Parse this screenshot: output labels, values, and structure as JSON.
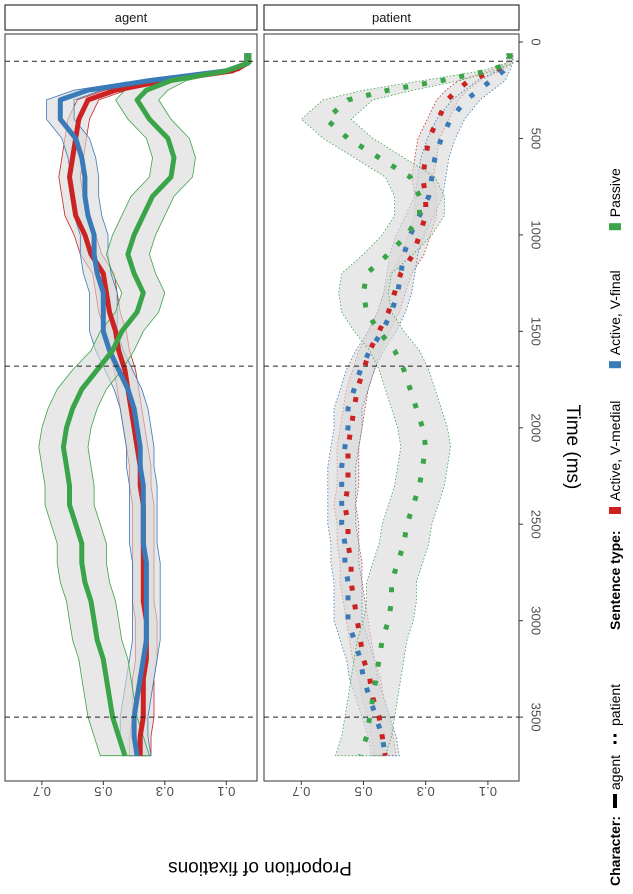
{
  "chart_data": {
    "type": "line",
    "title": "",
    "xlabel": "Time (ms)",
    "ylabel": "Proportion of fixations",
    "xlim": [
      0,
      3800
    ],
    "ylim": [
      0,
      0.82
    ],
    "x_ticks": [
      0,
      500,
      1000,
      1500,
      2000,
      2500,
      3000,
      3500
    ],
    "y_ticks": [
      0.1,
      0.3,
      0.5,
      0.7
    ],
    "y_tick_labels": [
      "0.1",
      "0.3",
      "0.5",
      "0.7"
    ],
    "vlines": [
      100,
      1680,
      3500
    ],
    "rotation": "rotated 90 degrees clockwise",
    "grid": false,
    "legend": {
      "placement": "bottom",
      "character_title": "Character:",
      "character_items": [
        "agent",
        "patient"
      ],
      "sentence_title": "Sentence type:",
      "sentence_items": [
        {
          "label": "Active, V-medial",
          "color": "#cc2222"
        },
        {
          "label": "Active, V-final",
          "color": "#3a7ab8"
        },
        {
          "label": "Passive",
          "color": "#3aa548"
        }
      ]
    },
    "panels": [
      {
        "label": "agent",
        "line_style": "solid",
        "series": [
          {
            "name": "Active, V-medial",
            "color": "#cc2222",
            "x": [
              60,
              110,
              150,
              200,
              250,
              300,
              400,
              500,
              600,
              700,
              800,
              900,
              1000,
              1100,
              1200,
              1300,
              1400,
              1500,
              1600,
              1700,
              1800,
              1900,
              2000,
              2100,
              2200,
              2300,
              2400,
              2500,
              2600,
              2700,
              2800,
              2900,
              3000,
              3100,
              3200,
              3300,
              3400,
              3500,
              3600,
              3700
            ],
            "y": [
              0.03,
              0.03,
              0.08,
              0.3,
              0.46,
              0.55,
              0.58,
              0.59,
              0.6,
              0.61,
              0.6,
              0.59,
              0.56,
              0.54,
              0.5,
              0.49,
              0.48,
              0.46,
              0.45,
              0.43,
              0.42,
              0.41,
              0.4,
              0.39,
              0.38,
              0.38,
              0.37,
              0.37,
              0.37,
              0.37,
              0.37,
              0.37,
              0.36,
              0.36,
              0.36,
              0.37,
              0.37,
              0.37,
              0.38,
              0.38
            ],
            "ci": [
              0.01,
              0.01,
              0.02,
              0.03,
              0.035,
              0.035,
              0.035,
              0.035,
              0.035,
              0.035,
              0.035,
              0.035,
              0.035,
              0.035,
              0.035,
              0.035,
              0.035,
              0.035,
              0.035,
              0.035,
              0.035,
              0.035,
              0.035,
              0.035,
              0.035,
              0.035,
              0.035,
              0.035,
              0.035,
              0.035,
              0.035,
              0.035,
              0.035,
              0.035,
              0.035,
              0.035,
              0.035,
              0.035,
              0.035,
              0.035
            ]
          },
          {
            "name": "Active, V-final",
            "color": "#3a7ab8",
            "x": [
              60,
              110,
              150,
              200,
              250,
              300,
              400,
              500,
              600,
              700,
              800,
              900,
              1000,
              1100,
              1200,
              1300,
              1400,
              1500,
              1600,
              1700,
              1800,
              1900,
              2000,
              2100,
              2200,
              2300,
              2400,
              2500,
              2600,
              2700,
              2800,
              2900,
              3000,
              3100,
              3200,
              3300,
              3400,
              3500,
              3600,
              3700
            ],
            "y": [
              0.03,
              0.03,
              0.1,
              0.35,
              0.55,
              0.64,
              0.64,
              0.59,
              0.57,
              0.56,
              0.56,
              0.55,
              0.53,
              0.53,
              0.52,
              0.5,
              0.5,
              0.5,
              0.48,
              0.45,
              0.42,
              0.4,
              0.39,
              0.38,
              0.38,
              0.37,
              0.37,
              0.37,
              0.37,
              0.36,
              0.36,
              0.36,
              0.36,
              0.36,
              0.37,
              0.38,
              0.39,
              0.4,
              0.4,
              0.39
            ],
            "ci": [
              0.01,
              0.01,
              0.02,
              0.04,
              0.045,
              0.045,
              0.045,
              0.045,
              0.045,
              0.045,
              0.045,
              0.045,
              0.045,
              0.045,
              0.045,
              0.045,
              0.045,
              0.045,
              0.045,
              0.045,
              0.045,
              0.045,
              0.045,
              0.045,
              0.045,
              0.045,
              0.045,
              0.045,
              0.045,
              0.045,
              0.045,
              0.045,
              0.045,
              0.045,
              0.045,
              0.045,
              0.045,
              0.045,
              0.045,
              0.045
            ]
          },
          {
            "name": "Passive",
            "color": "#3aa548",
            "x": [
              60,
              110,
              150,
              200,
              250,
              300,
              400,
              500,
              600,
              700,
              800,
              900,
              1000,
              1100,
              1200,
              1300,
              1400,
              1500,
              1600,
              1700,
              1800,
              1900,
              2000,
              2100,
              2200,
              2300,
              2400,
              2500,
              2600,
              2700,
              2800,
              2900,
              3000,
              3100,
              3200,
              3300,
              3400,
              3500,
              3600,
              3700
            ],
            "y": [
              0.03,
              0.03,
              0.1,
              0.28,
              0.36,
              0.39,
              0.35,
              0.29,
              0.27,
              0.28,
              0.34,
              0.37,
              0.4,
              0.42,
              0.4,
              0.37,
              0.39,
              0.44,
              0.47,
              0.52,
              0.57,
              0.6,
              0.62,
              0.63,
              0.62,
              0.61,
              0.61,
              0.59,
              0.57,
              0.57,
              0.56,
              0.54,
              0.53,
              0.52,
              0.5,
              0.49,
              0.48,
              0.47,
              0.45,
              0.43
            ],
            "ci": [
              0.01,
              0.01,
              0.02,
              0.05,
              0.07,
              0.07,
              0.07,
              0.07,
              0.07,
              0.07,
              0.07,
              0.07,
              0.07,
              0.07,
              0.07,
              0.07,
              0.07,
              0.07,
              0.07,
              0.08,
              0.08,
              0.08,
              0.08,
              0.08,
              0.08,
              0.08,
              0.08,
              0.08,
              0.08,
              0.08,
              0.08,
              0.08,
              0.08,
              0.08,
              0.08,
              0.08,
              0.08,
              0.08,
              0.08,
              0.08
            ]
          }
        ]
      },
      {
        "label": "patient",
        "line_style": "dotted",
        "series": [
          {
            "name": "Active, V-medial",
            "color": "#cc2222",
            "x": [
              60,
              110,
              150,
              200,
              250,
              300,
              400,
              500,
              600,
              700,
              800,
              900,
              1000,
              1100,
              1200,
              1300,
              1400,
              1500,
              1600,
              1700,
              1800,
              1900,
              2000,
              2100,
              2200,
              2300,
              2400,
              2500,
              2600,
              2700,
              2800,
              2900,
              3000,
              3100,
              3200,
              3300,
              3400,
              3500,
              3600,
              3700
            ],
            "y": [
              0.03,
              0.03,
              0.08,
              0.16,
              0.2,
              0.23,
              0.26,
              0.29,
              0.3,
              0.31,
              0.3,
              0.3,
              0.32,
              0.34,
              0.38,
              0.4,
              0.42,
              0.45,
              0.48,
              0.5,
              0.52,
              0.53,
              0.54,
              0.55,
              0.55,
              0.55,
              0.56,
              0.55,
              0.55,
              0.54,
              0.54,
              0.53,
              0.52,
              0.51,
              0.5,
              0.48,
              0.47,
              0.45,
              0.44,
              0.43
            ],
            "ci": [
              0.01,
              0.01,
              0.02,
              0.035,
              0.035,
              0.035,
              0.035,
              0.035,
              0.035,
              0.035,
              0.035,
              0.035,
              0.035,
              0.035,
              0.035,
              0.035,
              0.035,
              0.035,
              0.035,
              0.035,
              0.035,
              0.035,
              0.035,
              0.035,
              0.035,
              0.035,
              0.035,
              0.035,
              0.035,
              0.035,
              0.035,
              0.035,
              0.035,
              0.035,
              0.035,
              0.035,
              0.035,
              0.035,
              0.035,
              0.035
            ]
          },
          {
            "name": "Active, V-final",
            "color": "#3a7ab8",
            "x": [
              60,
              110,
              150,
              200,
              250,
              300,
              400,
              500,
              600,
              700,
              800,
              900,
              1000,
              1100,
              1200,
              1300,
              1400,
              1500,
              1600,
              1700,
              1800,
              1900,
              2000,
              2100,
              2200,
              2300,
              2400,
              2500,
              2600,
              2700,
              2800,
              2900,
              3000,
              3100,
              3200,
              3300,
              3400,
              3500,
              3600,
              3700
            ],
            "y": [
              0.03,
              0.03,
              0.05,
              0.09,
              0.13,
              0.17,
              0.22,
              0.25,
              0.27,
              0.28,
              0.29,
              0.32,
              0.35,
              0.37,
              0.38,
              0.39,
              0.41,
              0.44,
              0.48,
              0.51,
              0.53,
              0.55,
              0.55,
              0.56,
              0.57,
              0.57,
              0.57,
              0.57,
              0.56,
              0.56,
              0.55,
              0.55,
              0.55,
              0.53,
              0.51,
              0.5,
              0.48,
              0.46,
              0.44,
              0.43
            ],
            "ci": [
              0.01,
              0.01,
              0.02,
              0.045,
              0.045,
              0.045,
              0.045,
              0.045,
              0.045,
              0.045,
              0.045,
              0.045,
              0.045,
              0.045,
              0.045,
              0.045,
              0.045,
              0.045,
              0.045,
              0.045,
              0.045,
              0.045,
              0.045,
              0.045,
              0.045,
              0.045,
              0.045,
              0.045,
              0.045,
              0.045,
              0.045,
              0.045,
              0.045,
              0.045,
              0.045,
              0.045,
              0.045,
              0.045,
              0.045,
              0.045
            ]
          },
          {
            "name": "Passive",
            "color": "#3aa548",
            "x": [
              60,
              110,
              150,
              200,
              250,
              300,
              400,
              500,
              600,
              700,
              800,
              900,
              1000,
              1100,
              1200,
              1300,
              1400,
              1500,
              1600,
              1700,
              1800,
              1900,
              2000,
              2100,
              2200,
              2300,
              2400,
              2500,
              2600,
              2700,
              2800,
              2900,
              3000,
              3100,
              3200,
              3300,
              3400,
              3500,
              3600,
              3700
            ],
            "y": [
              0.03,
              0.03,
              0.1,
              0.25,
              0.42,
              0.55,
              0.62,
              0.55,
              0.45,
              0.35,
              0.32,
              0.32,
              0.36,
              0.42,
              0.49,
              0.5,
              0.49,
              0.45,
              0.4,
              0.37,
              0.35,
              0.33,
              0.31,
              0.3,
              0.31,
              0.32,
              0.34,
              0.36,
              0.37,
              0.39,
              0.41,
              0.41,
              0.42,
              0.44,
              0.45,
              0.46,
              0.47,
              0.48,
              0.49,
              0.51
            ],
            "ci": [
              0.01,
              0.01,
              0.02,
              0.06,
              0.08,
              0.08,
              0.08,
              0.08,
              0.08,
              0.08,
              0.08,
              0.08,
              0.08,
              0.08,
              0.08,
              0.08,
              0.08,
              0.08,
              0.08,
              0.08,
              0.08,
              0.08,
              0.08,
              0.08,
              0.08,
              0.08,
              0.08,
              0.08,
              0.08,
              0.08,
              0.08,
              0.08,
              0.08,
              0.08,
              0.08,
              0.08,
              0.08,
              0.08,
              0.08,
              0.08
            ]
          }
        ]
      }
    ]
  }
}
